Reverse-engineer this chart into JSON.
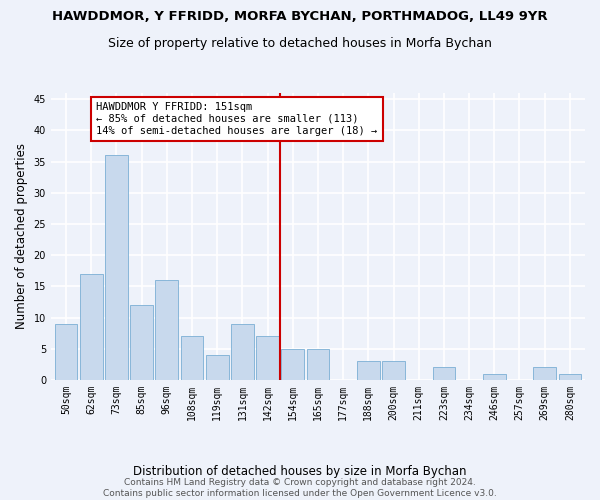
{
  "title": "HAWDDMOR, Y FFRIDD, MORFA BYCHAN, PORTHMADOG, LL49 9YR",
  "subtitle": "Size of property relative to detached houses in Morfa Bychan",
  "xlabel": "Distribution of detached houses by size in Morfa Bychan",
  "ylabel": "Number of detached properties",
  "categories": [
    "50sqm",
    "62sqm",
    "73sqm",
    "85sqm",
    "96sqm",
    "108sqm",
    "119sqm",
    "131sqm",
    "142sqm",
    "154sqm",
    "165sqm",
    "177sqm",
    "188sqm",
    "200sqm",
    "211sqm",
    "223sqm",
    "234sqm",
    "246sqm",
    "257sqm",
    "269sqm",
    "280sqm"
  ],
  "values": [
    9,
    17,
    36,
    12,
    16,
    7,
    4,
    9,
    7,
    5,
    5,
    0,
    3,
    3,
    0,
    2,
    0,
    1,
    0,
    2,
    1
  ],
  "bar_color": "#c8d9ed",
  "bar_edge_color": "#7bafd4",
  "vline_x_index": 8.5,
  "vline_color": "#cc0000",
  "annotation_text": "HAWDDMOR Y FFRIDD: 151sqm\n← 85% of detached houses are smaller (113)\n14% of semi-detached houses are larger (18) →",
  "annotation_box_color": "#cc0000",
  "ylim": [
    0,
    46
  ],
  "yticks": [
    0,
    5,
    10,
    15,
    20,
    25,
    30,
    35,
    40,
    45
  ],
  "background_color": "#eef2fa",
  "grid_color": "#d8e4f0",
  "footer": "Contains HM Land Registry data © Crown copyright and database right 2024.\nContains public sector information licensed under the Open Government Licence v3.0.",
  "title_fontsize": 9.5,
  "subtitle_fontsize": 9,
  "label_fontsize": 8.5,
  "tick_fontsize": 7,
  "footer_fontsize": 6.5,
  "annotation_fontsize": 7.5
}
